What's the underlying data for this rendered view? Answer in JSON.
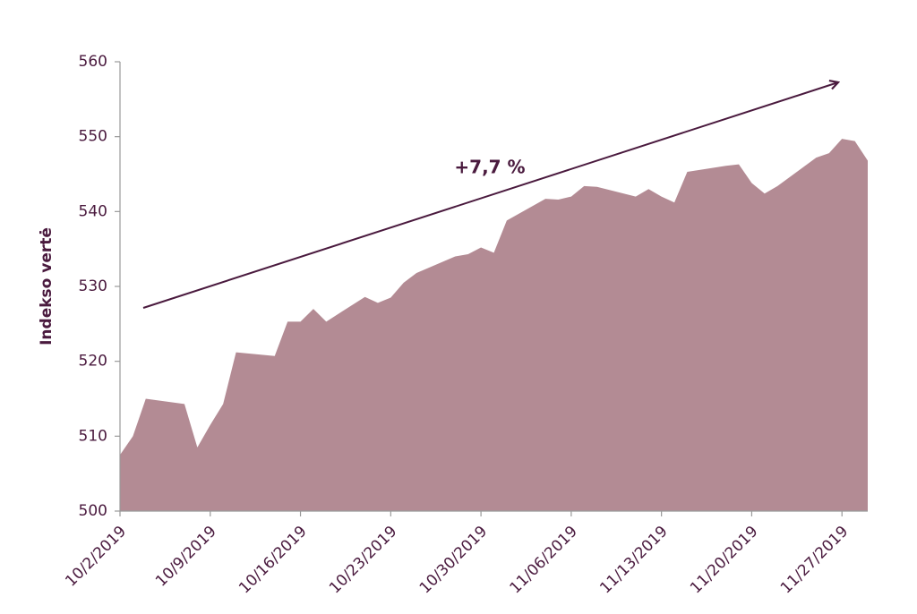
{
  "chart_data": {
    "type": "area",
    "y_label": "Indekso vertė",
    "annotation": "+7,7 %",
    "color": "#b38b94",
    "x": [
      "2019-10-02",
      "2019-10-03",
      "2019-10-04",
      "2019-10-07",
      "2019-10-08",
      "2019-10-09",
      "2019-10-10",
      "2019-10-11",
      "2019-10-14",
      "2019-10-15",
      "2019-10-16",
      "2019-10-17",
      "2019-10-18",
      "2019-10-21",
      "2019-10-22",
      "2019-10-23",
      "2019-10-24",
      "2019-10-25",
      "2019-10-28",
      "2019-10-29",
      "2019-10-30",
      "2019-10-31",
      "2019-11-01",
      "2019-11-04",
      "2019-11-05",
      "2019-11-06",
      "2019-11-07",
      "2019-11-08",
      "2019-11-11",
      "2019-11-12",
      "2019-11-13",
      "2019-11-14",
      "2019-11-15",
      "2019-11-18",
      "2019-11-19",
      "2019-11-20",
      "2019-11-21",
      "2019-11-22",
      "2019-11-25",
      "2019-11-26",
      "2019-11-27",
      "2019-11-28",
      "2019-11-29"
    ],
    "values": [
      507.5,
      510,
      515,
      514.3,
      508.5,
      511.5,
      514.3,
      521.2,
      520.7,
      525.3,
      525.3,
      527,
      525.3,
      528.6,
      527.8,
      528.5,
      530.5,
      531.8,
      534,
      534.3,
      535.2,
      534.5,
      538.8,
      541.7,
      541.6,
      542,
      543.4,
      543.3,
      542,
      543,
      542,
      541.2,
      545.3,
      546.1,
      546.3,
      543.8,
      542.4,
      543.4,
      547.2,
      547.8,
      549.7,
      549.4,
      546.8
    ],
    "xlim": [
      "2019-10-02",
      "2019-11-29"
    ],
    "xticks": [
      {
        "value": "2019-10-02",
        "label": "10/2/2019"
      },
      {
        "value": "2019-10-09",
        "label": "10/9/2019"
      },
      {
        "value": "2019-10-16",
        "label": "10/16/2019"
      },
      {
        "value": "2019-10-23",
        "label": "10/23/2019"
      },
      {
        "value": "2019-10-30",
        "label": "10/30/2019"
      },
      {
        "value": "2019-11-06",
        "label": "11/06/2019"
      },
      {
        "value": "2019-11-13",
        "label": "11/13/2019"
      },
      {
        "value": "2019-11-20",
        "label": "11/20/2019"
      },
      {
        "value": "2019-11-27",
        "label": "11/27/2019"
      }
    ],
    "ylim": [
      500,
      560
    ],
    "yticks": [
      500,
      510,
      520,
      530,
      540,
      550,
      560
    ],
    "grid": false
  }
}
